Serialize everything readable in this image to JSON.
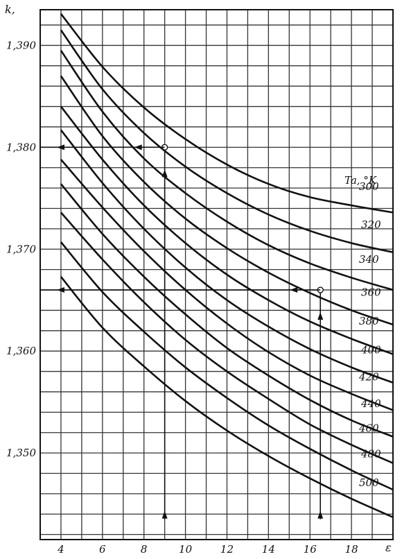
{
  "chart_data": {
    "type": "line",
    "title": "",
    "ylabel": "k,",
    "xlabel": "ε",
    "legend_title": "Ta, °K",
    "xlim": [
      3,
      20
    ],
    "ylim": [
      1.3415,
      1.3935
    ],
    "x_ticks": [
      {
        "value": 4,
        "label": "4"
      },
      {
        "value": 6,
        "label": "6"
      },
      {
        "value": 8,
        "label": "8"
      },
      {
        "value": 10,
        "label": "10"
      },
      {
        "value": 12,
        "label": "12"
      },
      {
        "value": 14,
        "label": "14"
      },
      {
        "value": 16,
        "label": "16"
      },
      {
        "value": 18,
        "label": "18"
      }
    ],
    "y_ticks": [
      {
        "value": 1.39,
        "label": "1,390"
      },
      {
        "value": 1.38,
        "label": "1,380"
      },
      {
        "value": 1.37,
        "label": "1,370"
      },
      {
        "value": 1.36,
        "label": "1,360"
      },
      {
        "value": 1.35,
        "label": "1,350"
      }
    ],
    "grid": {
      "x_step": 1,
      "y_step": 0.002
    },
    "series": [
      {
        "name": "300",
        "x": [
          4,
          6,
          8,
          10,
          12,
          14,
          16,
          18,
          20
        ],
        "y": [
          1.3931,
          1.3879,
          1.3839,
          1.3808,
          1.3783,
          1.3764,
          1.3751,
          1.3743,
          1.3736
        ]
      },
      {
        "name": "320",
        "x": [
          4,
          6,
          8,
          10,
          12,
          14,
          16,
          18,
          20
        ],
        "y": [
          1.3915,
          1.3857,
          1.3814,
          1.3781,
          1.3755,
          1.3734,
          1.3718,
          1.3706,
          1.3697
        ]
      },
      {
        "name": "340",
        "x": [
          4,
          6,
          8,
          10,
          12,
          14,
          16,
          18,
          20
        ],
        "y": [
          1.3895,
          1.3835,
          1.3789,
          1.3755,
          1.3727,
          1.3704,
          1.3686,
          1.3672,
          1.366
        ]
      },
      {
        "name": "360",
        "x": [
          4,
          6,
          8,
          10,
          12,
          14,
          16,
          18,
          20
        ],
        "y": [
          1.387,
          1.3811,
          1.3766,
          1.373,
          1.3701,
          1.3677,
          1.3657,
          1.364,
          1.3626
        ]
      },
      {
        "name": "380",
        "x": [
          4,
          6,
          8,
          10,
          12,
          14,
          16,
          18,
          20
        ],
        "y": [
          1.384,
          1.3788,
          1.3743,
          1.3706,
          1.3675,
          1.365,
          1.3629,
          1.3612,
          1.3597
        ]
      },
      {
        "name": "400",
        "x": [
          4,
          6,
          8,
          10,
          12,
          14,
          16,
          18,
          20
        ],
        "y": [
          1.3817,
          1.3765,
          1.372,
          1.3682,
          1.365,
          1.3624,
          1.3602,
          1.3584,
          1.3569
        ]
      },
      {
        "name": "420",
        "x": [
          4,
          6,
          8,
          10,
          12,
          14,
          16,
          18,
          20
        ],
        "y": [
          1.3788,
          1.3741,
          1.3698,
          1.366,
          1.3627,
          1.3599,
          1.3576,
          1.3558,
          1.3542
        ]
      },
      {
        "name": "440",
        "x": [
          4,
          6,
          8,
          10,
          12,
          14,
          16,
          18,
          20
        ],
        "y": [
          1.3764,
          1.3715,
          1.3673,
          1.3636,
          1.3603,
          1.3576,
          1.3552,
          1.3532,
          1.3516
        ]
      },
      {
        "name": "460",
        "x": [
          4,
          6,
          8,
          10,
          12,
          14,
          16,
          18,
          20
        ],
        "y": [
          1.3736,
          1.369,
          1.3648,
          1.3611,
          1.358,
          1.3553,
          1.3528,
          1.3508,
          1.349
        ]
      },
      {
        "name": "480",
        "x": [
          4,
          6,
          8,
          10,
          12,
          14,
          16,
          18,
          20
        ],
        "y": [
          1.3707,
          1.3658,
          1.3619,
          1.3584,
          1.3554,
          1.3527,
          1.3504,
          1.3483,
          1.3464
        ]
      },
      {
        "name": "500",
        "x": [
          4,
          6,
          8,
          10,
          12,
          14,
          16,
          18,
          20
        ],
        "y": [
          1.3673,
          1.3623,
          1.3585,
          1.3551,
          1.3522,
          1.3497,
          1.3475,
          1.3455,
          1.3437
        ]
      }
    ],
    "annotations": [
      {
        "type": "guide",
        "x": 9,
        "y_from": 1.3435,
        "y_to": 1.38,
        "arrow": "up",
        "marker": true
      },
      {
        "type": "guide",
        "y": 1.38,
        "x_from": 9,
        "x_to": 3,
        "arrow": "left"
      },
      {
        "type": "guide",
        "x": 16.5,
        "y_from": 1.3435,
        "y_to": 1.366,
        "arrow": "up",
        "marker": true
      },
      {
        "type": "guide",
        "y": 1.366,
        "x_from": 16.5,
        "x_to": 3,
        "arrow": "left"
      }
    ]
  }
}
